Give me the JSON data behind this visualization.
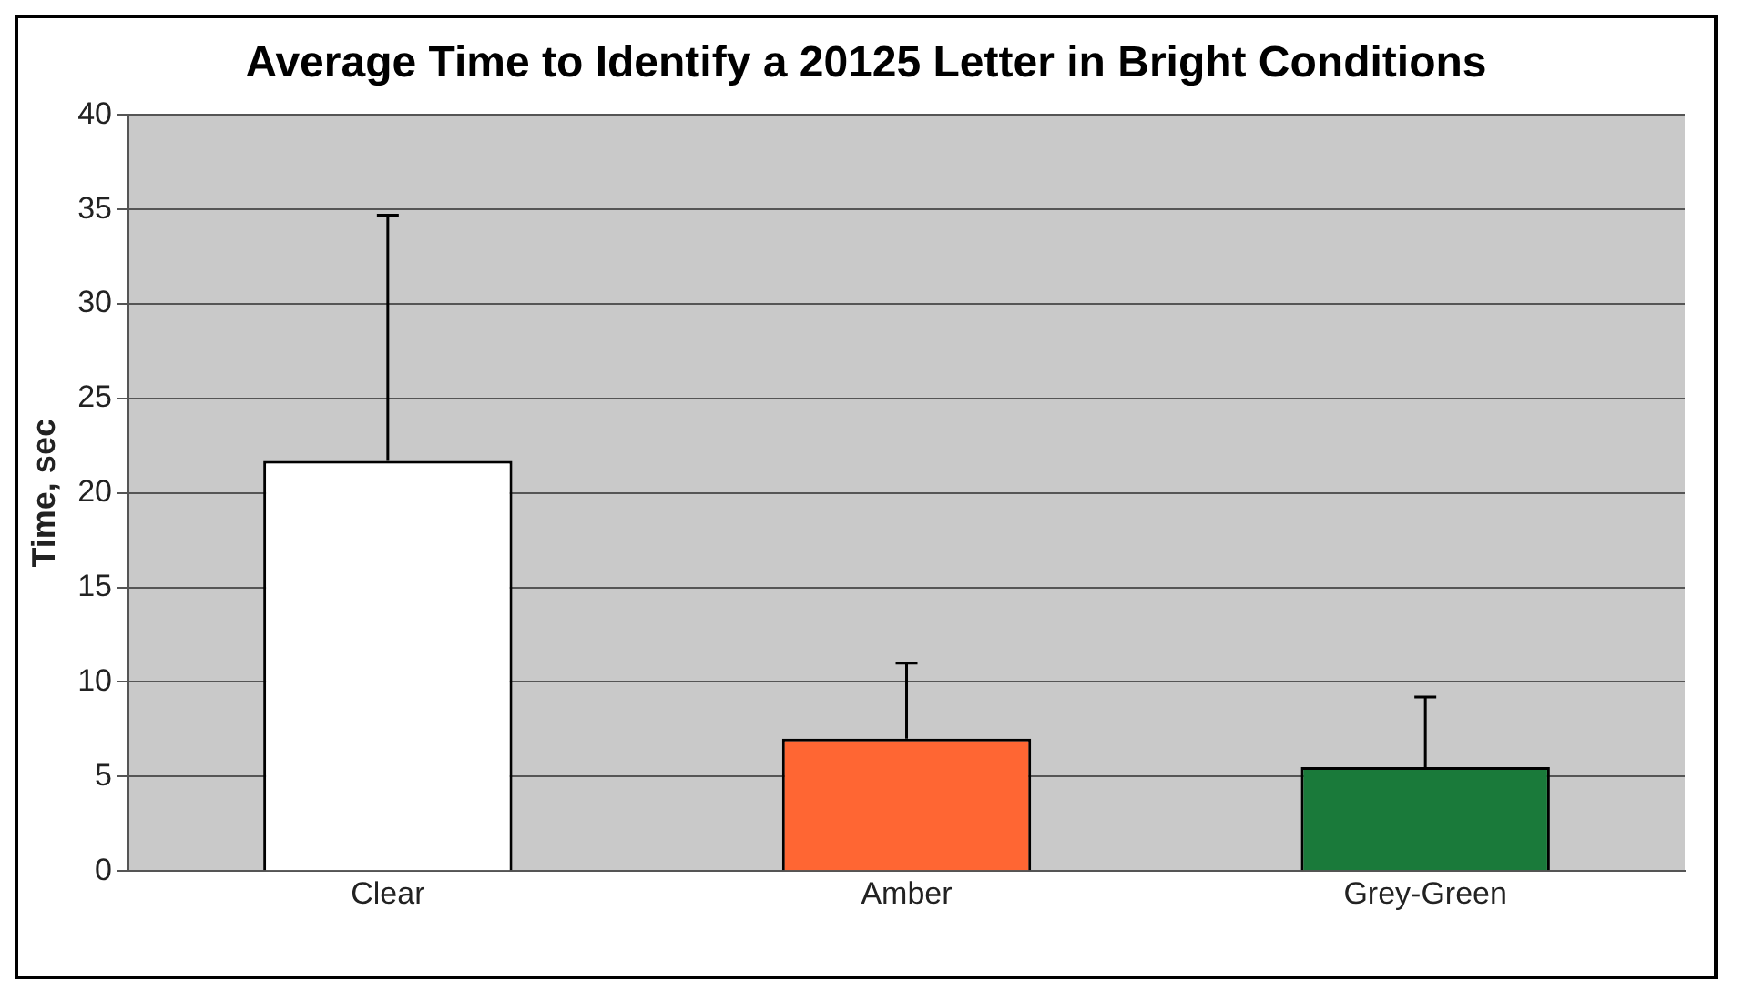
{
  "chart_data": {
    "type": "bar",
    "title": "Average Time to Identify a 20125 Letter in Bright Conditions",
    "ylabel": "Time, sec",
    "categories": [
      "Clear",
      "Amber",
      "Grey-Green"
    ],
    "values": [
      21.7,
      7,
      5.5
    ],
    "colors": [
      "#ffffff",
      "#ff6633",
      "#1a7a3a"
    ],
    "errors": [
      [
        21.7,
        34.7
      ],
      [
        7,
        11
      ],
      [
        5.5,
        9.2
      ]
    ],
    "ylim": [
      0,
      40
    ],
    "yticks": [
      0,
      5,
      10,
      15,
      20,
      25,
      30,
      35,
      40
    ],
    "grid": "y",
    "legend": false
  }
}
